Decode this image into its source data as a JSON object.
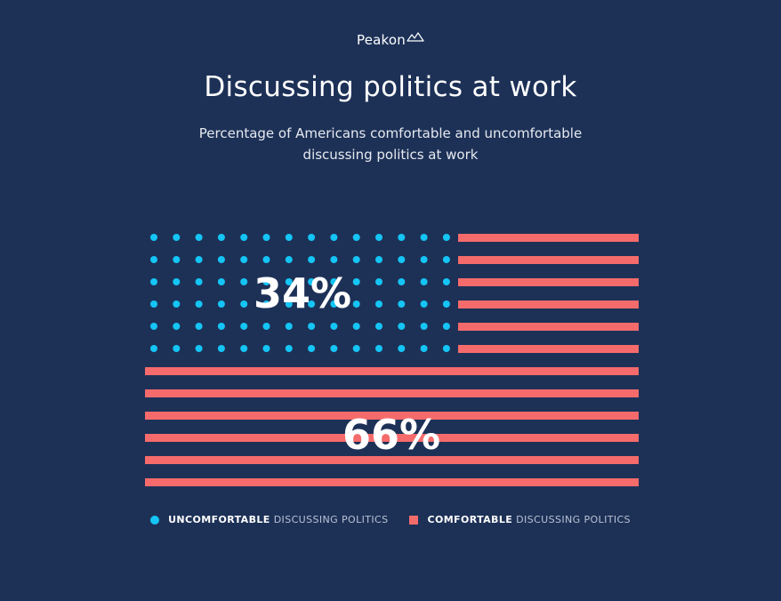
{
  "brand": {
    "name": "Peakon"
  },
  "header": {
    "title": "Discussing politics at work",
    "subtitle_line1": "Percentage of Americans comfortable and uncomfortable",
    "subtitle_line2": "discussing politics at work"
  },
  "chart_data": {
    "type": "pictogram",
    "title": "Discussing politics at work",
    "categories": [
      "Uncomfortable discussing politics",
      "Comfortable discussing politics"
    ],
    "values": [
      34,
      66
    ],
    "unit": "%",
    "data_labels": [
      "34%",
      "66%"
    ]
  },
  "colors": {
    "background": "#1d3157",
    "uncomfortable": "#14c5f5",
    "comfortable": "#f56b6b"
  },
  "legend": [
    {
      "strong": "UNCOMFORTABLE",
      "light": "DISCUSSING POLITICS",
      "marker": "dot"
    },
    {
      "strong": "COMFORTABLE",
      "light": "DISCUSSING POLITICS",
      "marker": "square"
    }
  ]
}
